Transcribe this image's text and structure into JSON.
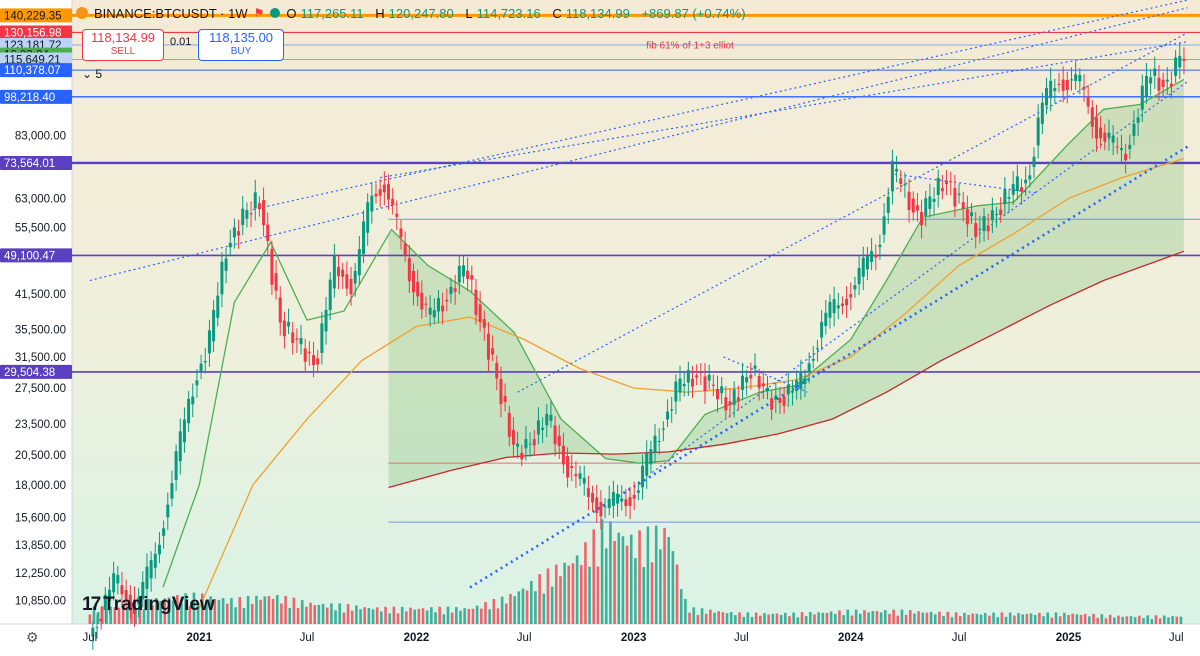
{
  "header": {
    "symbol": "BINANCE:BTCUSDT · 1W",
    "open_label": "O",
    "open": "117,265.11",
    "high_label": "H",
    "high": "120,247.80",
    "low_label": "L",
    "low": "114,723.16",
    "close_label": "C",
    "close": "118,134.99",
    "change": "+869.87 (+0.74%)"
  },
  "trade": {
    "sell_price": "118,134.99",
    "sell_label": "SELL",
    "buy_price": "118,135.00",
    "buy_label": "BUY",
    "spread": "0.01"
  },
  "indicator_collapse": "5",
  "annotation": "fib 61% of 1+3 elliot",
  "branding": "TradingView",
  "colors": {
    "background_top": "#f5ead6",
    "background_bottom": "#d9f3e6",
    "up": "#089981",
    "down": "#f23645",
    "ma_fast": "#4caf50",
    "ma_mid": "#f0a030",
    "ma_slow": "#c62828",
    "trend": "#2962ff",
    "level_purple": "#5a3fc0",
    "level_blue": "#3d6df0"
  },
  "chart_data": {
    "type": "candlestick",
    "symbol": "BINANCE:BTCUSDT",
    "interval": "1W",
    "y_scale": "log",
    "ylim": [
      9800,
      150000
    ],
    "x_axis": {
      "ticks": [
        {
          "label": "Jul",
          "date": "2020-07-01",
          "bold": false
        },
        {
          "label": "2021",
          "date": "2021-01-01",
          "bold": true
        },
        {
          "label": "Jul",
          "date": "2021-07-01",
          "bold": false
        },
        {
          "label": "2022",
          "date": "2022-01-01",
          "bold": true
        },
        {
          "label": "Jul",
          "date": "2022-07-01",
          "bold": false
        },
        {
          "label": "2023",
          "date": "2023-01-01",
          "bold": true
        },
        {
          "label": "Jul",
          "date": "2023-07-01",
          "bold": false
        },
        {
          "label": "2024",
          "date": "2024-01-01",
          "bold": true
        },
        {
          "label": "Jul",
          "date": "2024-07-01",
          "bold": false
        },
        {
          "label": "2025",
          "date": "2025-01-01",
          "bold": true
        },
        {
          "label": "Jul",
          "date": "2025-07-01",
          "bold": false
        }
      ]
    },
    "y_ticks": [
      "83,000.00",
      "63,000.00",
      "55,500.00",
      "41,500.00",
      "35,500.00",
      "31,500.00",
      "27,500.00",
      "23,500.00",
      "20,500.00",
      "18,000.00",
      "15,600.00",
      "13,850.00",
      "12,250.00",
      "10,850.00"
    ],
    "price_labels": [
      {
        "text": "140,229.35",
        "value": 140229.35,
        "color": "#ff9800",
        "text_color": "#131722"
      },
      {
        "text": "130,156.98",
        "value": 130156.98,
        "color": "#f23645",
        "text_color": "#ffffff"
      },
      {
        "text": "123,181.72",
        "value": 123181.72,
        "color": "#bcd3f5",
        "text_color": "#131722"
      },
      {
        "text": "16:03:24",
        "value": 118135,
        "color": "#4caf50",
        "text_color": "#131722"
      },
      {
        "text": "115,649.21",
        "value": 115649.21,
        "color": "#bcd3f5",
        "text_color": "#131722"
      },
      {
        "text": "110,378.07",
        "value": 110378.07,
        "color": "#2962ff",
        "text_color": "#ffffff"
      },
      {
        "text": "98,218.40",
        "value": 98218.4,
        "color": "#2962ff",
        "text_color": "#ffffff"
      },
      {
        "text": "73,564.01",
        "value": 73564.01,
        "color": "#5a3fc0",
        "text_color": "#ffffff"
      },
      {
        "text": "49,100.47",
        "value": 49100.47,
        "color": "#5a3fc0",
        "text_color": "#ffffff"
      },
      {
        "text": "29,504.38",
        "value": 29504.38,
        "color": "#5a3fc0",
        "text_color": "#ffffff"
      }
    ],
    "levels": [
      {
        "value": 140229.35,
        "color": "#ff9800",
        "width": 3
      },
      {
        "value": 130156.98,
        "color": "#f23645",
        "width": 1.2
      },
      {
        "value": 123181.72,
        "color": "#7fa7f2",
        "width": 1
      },
      {
        "value": 115649.21,
        "color": "#7fa7f2",
        "width": 1
      },
      {
        "value": 110378.07,
        "color": "#2962ff",
        "width": 1
      },
      {
        "value": 98218.4,
        "color": "#2962ff",
        "width": 1.4
      },
      {
        "value": 73564.01,
        "color": "#5a3fc0",
        "width": 2.4
      },
      {
        "value": 49100.47,
        "color": "#5a3fc0",
        "width": 1.6
      },
      {
        "value": 29504.38,
        "color": "#5a3fc0",
        "width": 1.6
      },
      {
        "value": 57500,
        "color": "#6f92e6",
        "width": 1,
        "from_date": "2021-11-15"
      },
      {
        "value": 19800,
        "color": "#e07070",
        "width": 1,
        "from_date": "2021-11-15"
      },
      {
        "value": 15300,
        "color": "#6f92e6",
        "width": 1,
        "from_date": "2021-11-15"
      }
    ],
    "trend_lines": [
      {
        "from": [
          "2021-04-01",
          60000
        ],
        "to": [
          "2025-07-20",
          150000
        ],
        "dash": "2,3",
        "width": 1.2
      },
      {
        "from": [
          "2021-11-01",
          69000
        ],
        "to": [
          "2025-07-20",
          125000
        ],
        "dash": "2,3",
        "width": 1.2
      },
      {
        "from": [
          "2020-07-01",
          44000
        ],
        "to": [
          "2025-07-20",
          145000
        ],
        "dash": "2,3",
        "width": 1.2
      },
      {
        "from": [
          "2022-06-20",
          27000
        ],
        "to": [
          "2025-07-20",
          130000
        ],
        "dash": "2,3",
        "width": 1.2
      },
      {
        "from": [
          "2022-04-01",
          11500
        ],
        "to": [
          "2025-07-20",
          79000
        ],
        "dash": "2,4",
        "width": 2.6
      },
      {
        "from": [
          "2023-02-01",
          19000
        ],
        "to": [
          "2025-07-20",
          105000
        ],
        "dash": "2,3",
        "width": 1.2
      },
      {
        "from": [
          "2023-06-01",
          31500
        ],
        "to": [
          "2023-10-20",
          27000
        ],
        "dash": "2,3",
        "width": 1.2
      },
      {
        "from": [
          "2024-03-15",
          70000
        ],
        "to": [
          "2024-11-10",
          64500
        ],
        "dash": "2,3",
        "width": 1.2
      }
    ],
    "price_path": [
      [
        "2020-07-01",
        9200
      ],
      [
        "2020-08-15",
        11800
      ],
      [
        "2020-09-20",
        10600
      ],
      [
        "2020-10-20",
        12900
      ],
      [
        "2020-11-20",
        18500
      ],
      [
        "2020-12-28",
        29000
      ],
      [
        "2021-01-20",
        33000
      ],
      [
        "2021-02-20",
        52000
      ],
      [
        "2021-03-20",
        58000
      ],
      [
        "2021-04-15",
        63000
      ],
      [
        "2021-05-20",
        37000
      ],
      [
        "2021-06-20",
        33000
      ],
      [
        "2021-07-20",
        31000
      ],
      [
        "2021-08-20",
        47000
      ],
      [
        "2021-09-20",
        43000
      ],
      [
        "2021-10-20",
        64000
      ],
      [
        "2021-11-10",
        68000
      ],
      [
        "2021-12-20",
        47000
      ],
      [
        "2022-01-24",
        37000
      ],
      [
        "2022-03-28",
        46500
      ],
      [
        "2022-05-15",
        30000
      ],
      [
        "2022-06-20",
        20500
      ],
      [
        "2022-08-14",
        24000
      ],
      [
        "2022-09-20",
        19000
      ],
      [
        "2022-11-14",
        16200
      ],
      [
        "2023-01-10",
        17500
      ],
      [
        "2023-02-20",
        23500
      ],
      [
        "2023-03-20",
        27500
      ],
      [
        "2023-04-20",
        29500
      ],
      [
        "2023-06-15",
        25500
      ],
      [
        "2023-07-20",
        30000
      ],
      [
        "2023-08-20",
        26000
      ],
      [
        "2023-10-10",
        27500
      ],
      [
        "2023-11-20",
        37000
      ],
      [
        "2024-01-10",
        43000
      ],
      [
        "2024-02-20",
        52000
      ],
      [
        "2024-03-14",
        71000
      ],
      [
        "2024-05-01",
        58000
      ],
      [
        "2024-06-10",
        69000
      ],
      [
        "2024-08-05",
        54000
      ],
      [
        "2024-09-20",
        63000
      ],
      [
        "2024-10-28",
        69000
      ],
      [
        "2024-11-20",
        94000
      ],
      [
        "2024-12-17",
        106000
      ],
      [
        "2025-01-20",
        105000
      ],
      [
        "2025-02-20",
        86000
      ],
      [
        "2025-03-15",
        80000
      ],
      [
        "2025-04-07",
        76000
      ],
      [
        "2025-05-20",
        108000
      ],
      [
        "2025-06-20",
        104000
      ],
      [
        "2025-07-14",
        118135
      ]
    ],
    "moving_averages": [
      {
        "color": "#4caf50",
        "fill_above": true,
        "points": [
          [
            "2020-11-01",
            11500
          ],
          [
            "2021-01-01",
            18000
          ],
          [
            "2021-03-01",
            40000
          ],
          [
            "2021-05-01",
            52000
          ],
          [
            "2021-07-01",
            37000
          ],
          [
            "2021-09-01",
            38500
          ],
          [
            "2021-11-20",
            55000
          ],
          [
            "2022-01-20",
            47000
          ],
          [
            "2022-04-01",
            42000
          ],
          [
            "2022-06-15",
            35000
          ],
          [
            "2022-09-01",
            24000
          ],
          [
            "2022-11-15",
            20200
          ],
          [
            "2023-01-10",
            19800
          ],
          [
            "2023-03-01",
            20000
          ],
          [
            "2023-05-01",
            24500
          ],
          [
            "2023-08-01",
            27000
          ],
          [
            "2023-10-01",
            27800
          ],
          [
            "2024-01-01",
            34000
          ],
          [
            "2024-03-01",
            44000
          ],
          [
            "2024-05-01",
            58000
          ],
          [
            "2024-08-01",
            61000
          ],
          [
            "2024-10-01",
            62000
          ],
          [
            "2025-01-01",
            80000
          ],
          [
            "2025-03-01",
            93000
          ],
          [
            "2025-05-01",
            95000
          ],
          [
            "2025-07-14",
            106000
          ]
        ]
      },
      {
        "color": "#f0a030",
        "points": [
          [
            "2021-01-01",
            10500
          ],
          [
            "2021-04-01",
            18000
          ],
          [
            "2021-07-01",
            24000
          ],
          [
            "2021-10-01",
            31000
          ],
          [
            "2022-01-01",
            36000
          ],
          [
            "2022-04-01",
            37500
          ],
          [
            "2022-07-01",
            34000
          ],
          [
            "2022-10-01",
            30000
          ],
          [
            "2023-01-01",
            27500
          ],
          [
            "2023-04-01",
            27000
          ],
          [
            "2023-07-01",
            27500
          ],
          [
            "2023-10-01",
            28500
          ],
          [
            "2024-01-01",
            31500
          ],
          [
            "2024-04-01",
            38000
          ],
          [
            "2024-07-01",
            47000
          ],
          [
            "2024-10-01",
            54000
          ],
          [
            "2025-01-01",
            63000
          ],
          [
            "2025-04-01",
            69000
          ],
          [
            "2025-07-14",
            75000
          ]
        ]
      },
      {
        "color": "#c62828",
        "points": [
          [
            "2021-11-15",
            17800
          ],
          [
            "2022-03-01",
            19200
          ],
          [
            "2022-06-01",
            20300
          ],
          [
            "2022-09-01",
            20700
          ],
          [
            "2022-12-01",
            20600
          ],
          [
            "2023-03-01",
            20800
          ],
          [
            "2023-06-01",
            21500
          ],
          [
            "2023-09-01",
            22500
          ],
          [
            "2023-12-01",
            24000
          ],
          [
            "2024-03-01",
            27000
          ],
          [
            "2024-06-01",
            31000
          ],
          [
            "2024-09-01",
            35000
          ],
          [
            "2024-12-01",
            39500
          ],
          [
            "2025-03-01",
            44000
          ],
          [
            "2025-07-14",
            50000
          ]
        ]
      }
    ],
    "volume_profile": [
      [
        "2020-07-01",
        0.3
      ],
      [
        "2020-09-01",
        0.35
      ],
      [
        "2020-11-01",
        0.5
      ],
      [
        "2021-01-01",
        0.55
      ],
      [
        "2021-03-01",
        0.45
      ],
      [
        "2021-05-01",
        0.55
      ],
      [
        "2021-07-01",
        0.4
      ],
      [
        "2021-09-01",
        0.35
      ],
      [
        "2021-11-01",
        0.3
      ],
      [
        "2022-01-01",
        0.3
      ],
      [
        "2022-04-01",
        0.3
      ],
      [
        "2022-06-01",
        0.5
      ],
      [
        "2022-08-01",
        0.9
      ],
      [
        "2022-10-01",
        1.3
      ],
      [
        "2022-11-15",
        1.9
      ],
      [
        "2023-01-01",
        1.6
      ],
      [
        "2023-03-01",
        1.8
      ],
      [
        "2023-04-01",
        0.3
      ],
      [
        "2023-07-01",
        0.2
      ],
      [
        "2023-10-01",
        0.2
      ],
      [
        "2024-01-01",
        0.25
      ],
      [
        "2024-04-01",
        0.25
      ],
      [
        "2024-07-01",
        0.2
      ],
      [
        "2024-10-01",
        0.2
      ],
      [
        "2025-01-01",
        0.2
      ],
      [
        "2025-04-01",
        0.15
      ],
      [
        "2025-07-14",
        0.15
      ]
    ]
  }
}
